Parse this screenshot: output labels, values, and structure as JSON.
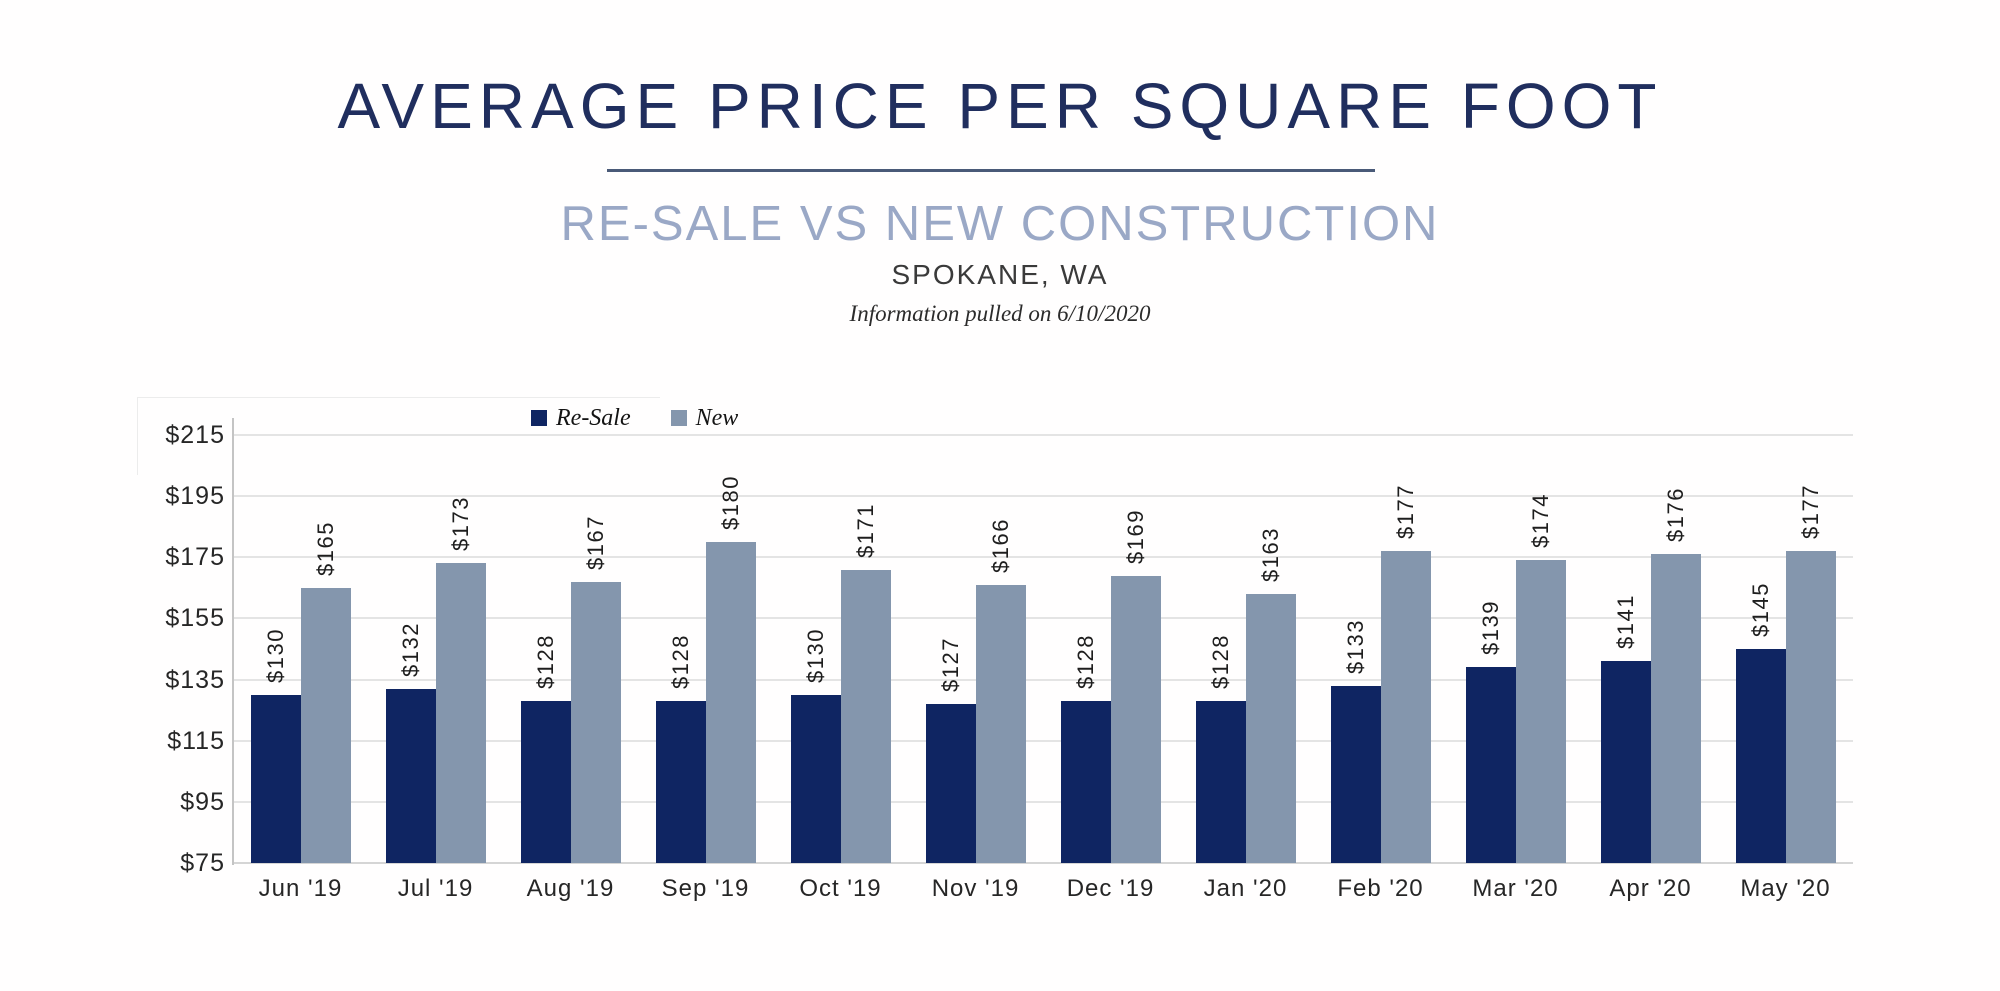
{
  "header": {
    "title": "AVERAGE PRICE PER SQUARE FOOT",
    "subtitle": "RE-SALE VS NEW CONSTRUCTION",
    "location": "SPOKANE, WA",
    "note": "Information pulled on 6/10/2020"
  },
  "chart_data": {
    "type": "bar",
    "title": "AVERAGE PRICE PER SQUARE FOOT",
    "subtitle": "RE-SALE VS NEW CONSTRUCTION",
    "location": "SPOKANE, WA",
    "note": "Information pulled on 6/10/2020",
    "categories": [
      "Jun '19",
      "Jul '19",
      "Aug '19",
      "Sep '19",
      "Oct '19",
      "Nov '19",
      "Dec '19",
      "Jan '20",
      "Feb '20",
      "Mar '20",
      "Apr '20",
      "May '20"
    ],
    "series": [
      {
        "name": "Re-Sale",
        "color": "#0F2562",
        "values": [
          130,
          132,
          128,
          128,
          130,
          127,
          128,
          128,
          133,
          139,
          141,
          145
        ]
      },
      {
        "name": "New",
        "color": "#8496AD",
        "values": [
          165,
          173,
          167,
          180,
          171,
          166,
          169,
          163,
          177,
          174,
          176,
          177
        ]
      }
    ],
    "value_prefix": "$",
    "data_labels": "rotated-90-above-bars",
    "ylim": [
      75,
      215
    ],
    "ytick_step": 20,
    "yticks": [
      215,
      195,
      175,
      155,
      135,
      115,
      95,
      75
    ],
    "ytick_labels": [
      "$215",
      "$195",
      "$175",
      "$155",
      "$135",
      "$115",
      "$95",
      "$75"
    ],
    "xlabel": "",
    "ylabel": "",
    "grid": true,
    "legend_position": "top-inside-left"
  },
  "colors": {
    "title": "#202E5E",
    "subtitle": "#9AA8C6",
    "divider": "#4A5A78",
    "resale_bar": "#0F2562",
    "new_bar": "#8496AD",
    "gridline": "#E4E4E4",
    "axis_line": "#C4C4C4",
    "background": "#FFFEFE"
  }
}
